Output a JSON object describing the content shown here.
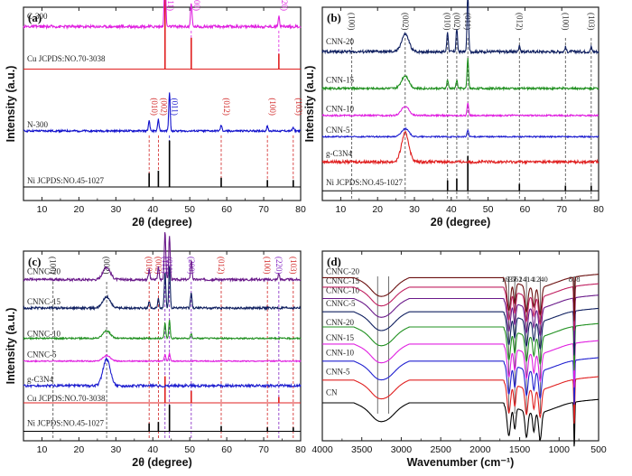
{
  "chart_data": [
    {
      "panel": "(a)",
      "type": "line",
      "xlabel": "2θ (degree)",
      "ylabel": "Intensity (a.u.)",
      "xlim": [
        5,
        80
      ],
      "xticks": [
        10,
        20,
        30,
        40,
        50,
        60,
        70,
        80
      ],
      "series": [
        {
          "name": "Ni JCPDS:NO.45-1027",
          "kind": "ref",
          "color": "#000000",
          "peaks": [
            [
              39.0,
              0.3
            ],
            [
              41.5,
              0.35
            ],
            [
              44.5,
              1.0
            ],
            [
              58.5,
              0.2
            ],
            [
              71.0,
              0.15
            ],
            [
              78.0,
              0.15
            ]
          ]
        },
        {
          "name": "N-300",
          "kind": "pattern",
          "color": "#1010cc",
          "peaks": [
            [
              39.0,
              0.25
            ],
            [
              41.5,
              0.3
            ],
            [
              44.5,
              1.0
            ],
            [
              58.5,
              0.15
            ],
            [
              71.0,
              0.12
            ],
            [
              78.0,
              0.1
            ]
          ]
        },
        {
          "name": "Cu JCPDS:NO.70-3038",
          "kind": "ref",
          "color": "#e02020",
          "peaks": [
            [
              43.3,
              1.0
            ],
            [
              50.4,
              0.45
            ],
            [
              74.1,
              0.22
            ]
          ]
        },
        {
          "name": "C-300",
          "kind": "pattern",
          "color": "#e020e0",
          "peaks": [
            [
              43.3,
              1.0
            ],
            [
              50.4,
              0.4
            ],
            [
              74.1,
              0.18
            ]
          ]
        }
      ],
      "annotations": [
        {
          "text": "(111)",
          "x": 43.3,
          "color": "#e020e0"
        },
        {
          "text": "(200)",
          "x": 50.4,
          "color": "#e020e0"
        },
        {
          "text": "(220)",
          "x": 74.1,
          "color": "#e020e0"
        },
        {
          "text": "(010)",
          "x": 39.0,
          "color": "#d02020"
        },
        {
          "text": "(002)",
          "x": 41.5,
          "color": "#d02020"
        },
        {
          "text": "(011)",
          "x": 44.5,
          "color": "#1010cc"
        },
        {
          "text": "(012)",
          "x": 58.5,
          "color": "#d02020"
        },
        {
          "text": "(100)",
          "x": 71.0,
          "color": "#d02020"
        },
        {
          "text": "(103)",
          "x": 78.0,
          "color": "#d02020"
        }
      ]
    },
    {
      "panel": "(b)",
      "type": "line",
      "xlabel": "2θ (degree)",
      "ylabel": "Intensity (a.u.)",
      "xlim": [
        5,
        80
      ],
      "xticks": [
        10,
        20,
        30,
        40,
        50,
        60,
        70,
        80
      ],
      "series": [
        {
          "name": "Ni JCPDS:NO.45-1027",
          "kind": "ref",
          "color": "#000000",
          "peaks": [
            [
              39.0,
              0.3
            ],
            [
              41.5,
              0.35
            ],
            [
              44.5,
              1.0
            ],
            [
              58.5,
              0.2
            ],
            [
              71.0,
              0.15
            ],
            [
              78.0,
              0.15
            ]
          ]
        },
        {
          "name": "g-C3N4",
          "kind": "pattern",
          "color": "#e02020",
          "hump": [
            27.5,
            0.5
          ],
          "peaks": []
        },
        {
          "name": "CNN-5",
          "kind": "pattern",
          "color": "#2020d0",
          "hump": [
            27.5,
            0.3
          ],
          "peaks": [
            [
              44.5,
              0.25
            ]
          ]
        },
        {
          "name": "CNN-10",
          "kind": "pattern",
          "color": "#e020e0",
          "hump": [
            27.5,
            0.3
          ],
          "peaks": [
            [
              44.5,
              0.4
            ]
          ]
        },
        {
          "name": "CNN-15",
          "kind": "pattern",
          "color": "#209020",
          "hump": [
            27.5,
            0.3
          ],
          "peaks": [
            [
              39.0,
              0.2
            ],
            [
              41.5,
              0.2
            ],
            [
              44.5,
              0.7
            ]
          ]
        },
        {
          "name": "CNN-20",
          "kind": "pattern",
          "color": "#102060",
          "hump": [
            27.5,
            0.3
          ],
          "peaks": [
            [
              39.0,
              0.35
            ],
            [
              41.5,
              0.4
            ],
            [
              44.5,
              1.0
            ],
            [
              58.5,
              0.12
            ],
            [
              71.0,
              0.08
            ],
            [
              78.0,
              0.08
            ]
          ]
        }
      ],
      "annotations": [
        {
          "text": "(100)",
          "x": 13.0,
          "color": "#222222"
        },
        {
          "text": "(002)",
          "x": 27.5,
          "color": "#222222"
        },
        {
          "text": "(010)",
          "x": 39.0,
          "color": "#222222"
        },
        {
          "text": "(002)",
          "x": 41.5,
          "color": "#222222"
        },
        {
          "text": "(011)",
          "x": 44.5,
          "color": "#222222"
        },
        {
          "text": "(012)",
          "x": 58.5,
          "color": "#222222"
        },
        {
          "text": "(100)",
          "x": 71.0,
          "color": "#222222"
        },
        {
          "text": "(103)",
          "x": 78.0,
          "color": "#222222"
        }
      ]
    },
    {
      "panel": "(c)",
      "type": "line",
      "xlabel": "2θ (degree)",
      "ylabel": "Intensity (a.u.)",
      "xlim": [
        5,
        80
      ],
      "xticks": [
        10,
        20,
        30,
        40,
        50,
        60,
        70,
        80
      ],
      "series": [
        {
          "name": "Ni JCPDS:NO.45-1027",
          "kind": "ref",
          "color": "#000000",
          "peaks": [
            [
              39.0,
              0.3
            ],
            [
              41.5,
              0.35
            ],
            [
              44.5,
              1.0
            ],
            [
              58.5,
              0.2
            ],
            [
              71.0,
              0.15
            ],
            [
              78.0,
              0.15
            ]
          ]
        },
        {
          "name": "Cu JCPDS:NO.70-3038",
          "kind": "ref",
          "color": "#e02020",
          "peaks": [
            [
              43.3,
              1.0
            ],
            [
              50.4,
              0.45
            ],
            [
              74.1,
              0.22
            ]
          ]
        },
        {
          "name": "g-C3N4",
          "kind": "pattern",
          "color": "#2020d0",
          "hump": [
            27.5,
            0.5
          ],
          "peaks": []
        },
        {
          "name": "CNNC-5",
          "kind": "pattern",
          "color": "#e020e0",
          "hump": [
            27.5,
            0.25
          ],
          "peaks": [
            [
              43.3,
              0.3
            ],
            [
              44.5,
              0.35
            ]
          ]
        },
        {
          "name": "CNNC-10",
          "kind": "pattern",
          "color": "#209020",
          "hump": [
            27.5,
            0.25
          ],
          "peaks": [
            [
              43.3,
              0.5
            ],
            [
              44.5,
              0.6
            ],
            [
              50.4,
              0.15
            ]
          ]
        },
        {
          "name": "CNNC-15",
          "kind": "pattern",
          "color": "#102060",
          "hump": [
            27.5,
            0.25
          ],
          "peaks": [
            [
              39.0,
              0.15
            ],
            [
              41.5,
              0.2
            ],
            [
              43.3,
              0.8
            ],
            [
              44.5,
              0.9
            ],
            [
              50.4,
              0.35
            ]
          ]
        },
        {
          "name": "CNNC-20",
          "kind": "pattern",
          "color": "#6a1a8a",
          "hump": [
            27.5,
            0.25
          ],
          "peaks": [
            [
              39.0,
              0.2
            ],
            [
              41.5,
              0.25
            ],
            [
              43.3,
              1.0
            ],
            [
              44.5,
              0.9
            ],
            [
              50.4,
              0.4
            ],
            [
              74.1,
              0.12
            ]
          ]
        }
      ],
      "annotations": [
        {
          "text": "(100)",
          "x": 13.0,
          "color": "#222222"
        },
        {
          "text": "(002)",
          "x": 27.5,
          "color": "#222222"
        },
        {
          "text": "(010)",
          "x": 39.0,
          "color": "#d02020"
        },
        {
          "text": "(002)",
          "x": 41.5,
          "color": "#d02020"
        },
        {
          "text": "(111)",
          "x": 43.3,
          "color": "#8020c0"
        },
        {
          "text": "(011)",
          "x": 44.5,
          "color": "#8020c0"
        },
        {
          "text": "(200)",
          "x": 50.4,
          "color": "#8020c0"
        },
        {
          "text": "(012)",
          "x": 58.5,
          "color": "#d02020"
        },
        {
          "text": "(100)",
          "x": 71.0,
          "color": "#d02020"
        },
        {
          "text": "(220)",
          "x": 74.1,
          "color": "#8020c0"
        },
        {
          "text": "(103)",
          "x": 78.0,
          "color": "#d02020"
        }
      ]
    },
    {
      "panel": "(d)",
      "type": "line",
      "xlabel": "Wavenumber (cm⁻¹)",
      "ylabel": "",
      "xlim": [
        4000,
        500
      ],
      "xticks": [
        4000,
        3500,
        3000,
        2500,
        2000,
        1500,
        1000,
        500
      ],
      "series": [
        {
          "name": "CN",
          "color": "#000000"
        },
        {
          "name": "CNN-5",
          "color": "#e02020"
        },
        {
          "name": "CNN-10",
          "color": "#2020d0"
        },
        {
          "name": "CNN-15",
          "color": "#e020e0"
        },
        {
          "name": "CNN-20",
          "color": "#209020"
        },
        {
          "name": "CNNC-5",
          "color": "#102060"
        },
        {
          "name": "CNNC-10",
          "color": "#6a1a8a"
        },
        {
          "name": "CNNC-15",
          "color": "#c02060"
        },
        {
          "name": "CNNC-20",
          "color": "#6b1010"
        }
      ],
      "bands": [
        3300,
        3160,
        1637,
        1562,
        1414,
        1240,
        808
      ],
      "annotations": [
        {
          "text": "1637",
          "x": 1637
        },
        {
          "text": "1562",
          "x": 1562
        },
        {
          "text": "1414",
          "x": 1414
        },
        {
          "text": "1240",
          "x": 1240
        },
        {
          "text": "808",
          "x": 808
        }
      ]
    }
  ]
}
